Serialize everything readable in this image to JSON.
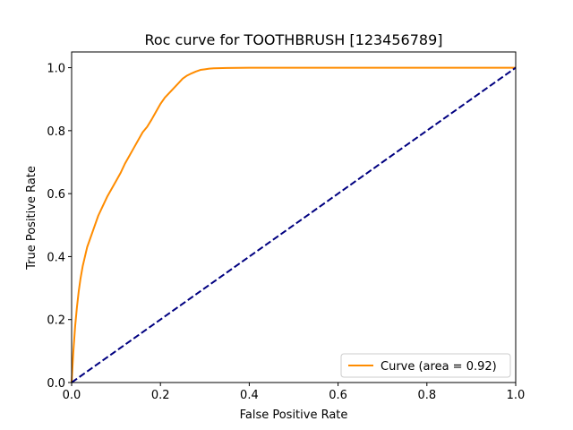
{
  "chart_data": {
    "type": "line",
    "title": "Roc curve for TOOTHBRUSH [123456789]",
    "xlabel": "False Positive Rate",
    "ylabel": "True Positive Rate",
    "xlim": [
      0,
      1
    ],
    "ylim": [
      0,
      1.05
    ],
    "xticks": [
      0.0,
      0.2,
      0.4,
      0.6,
      0.8,
      1.0
    ],
    "yticks": [
      0.0,
      0.2,
      0.4,
      0.6,
      0.8,
      1.0
    ],
    "xtick_labels": [
      "0.0",
      "0.2",
      "0.4",
      "0.6",
      "0.8",
      "1.0"
    ],
    "ytick_labels": [
      "0.0",
      "0.2",
      "0.4",
      "0.6",
      "0.8",
      "1.0"
    ],
    "grid": false,
    "legend_position": "lower-right",
    "series": [
      {
        "name": "Curve (area = 0.92)",
        "color": "#ff8c00",
        "style": "solid",
        "x": [
          0.0,
          0.004,
          0.008,
          0.012,
          0.016,
          0.02,
          0.025,
          0.03,
          0.035,
          0.04,
          0.05,
          0.06,
          0.07,
          0.08,
          0.09,
          0.1,
          0.11,
          0.12,
          0.13,
          0.14,
          0.15,
          0.16,
          0.17,
          0.18,
          0.19,
          0.2,
          0.21,
          0.22,
          0.23,
          0.24,
          0.25,
          0.26,
          0.27,
          0.28,
          0.29,
          0.3,
          0.31,
          0.32,
          0.35,
          0.4,
          0.5,
          0.6,
          0.7,
          0.8,
          0.9,
          1.0
        ],
        "y": [
          0.0,
          0.1,
          0.18,
          0.24,
          0.29,
          0.33,
          0.37,
          0.4,
          0.43,
          0.45,
          0.49,
          0.53,
          0.56,
          0.59,
          0.615,
          0.64,
          0.665,
          0.695,
          0.72,
          0.745,
          0.77,
          0.795,
          0.812,
          0.835,
          0.86,
          0.885,
          0.905,
          0.92,
          0.935,
          0.95,
          0.965,
          0.975,
          0.982,
          0.988,
          0.993,
          0.995,
          0.997,
          0.998,
          0.999,
          1.0,
          1.0,
          1.0,
          1.0,
          1.0,
          1.0,
          1.0
        ]
      },
      {
        "name": "",
        "color": "#000080",
        "style": "dashed",
        "x": [
          0.0,
          1.0
        ],
        "y": [
          0.0,
          1.0
        ]
      }
    ]
  }
}
